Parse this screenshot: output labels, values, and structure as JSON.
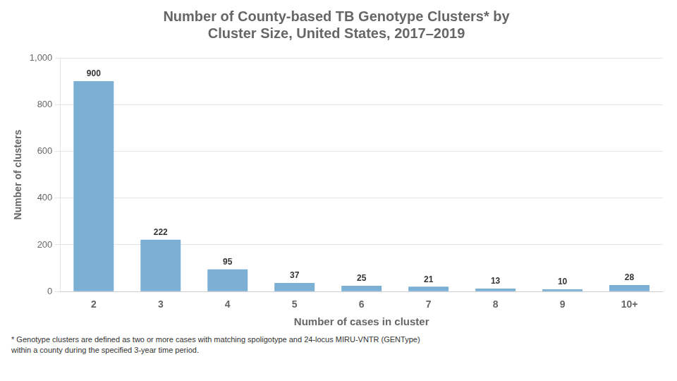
{
  "chart_data": {
    "type": "bar",
    "title": [
      "Number of County-based TB Genotype Clusters* by",
      "Cluster Size, United States, 2017–2019"
    ],
    "xlabel": "Number of cases in cluster",
    "ylabel": "Number of clusters",
    "categories": [
      "2",
      "3",
      "4",
      "5",
      "6",
      "7",
      "8",
      "9",
      "10+"
    ],
    "values": [
      900,
      222,
      95,
      37,
      25,
      21,
      13,
      10,
      28
    ],
    "color": "#7bafd4",
    "ylim": [
      0,
      1000
    ],
    "yticks": [
      0,
      200,
      400,
      600,
      800,
      {
        "value": 1000,
        "label": "1,000"
      }
    ],
    "grid": true,
    "data_labels": true,
    "annotations": [
      "* Genotype clusters are defined as two or more cases with matching spoligotype and 24-locus MIRU-VNTR (GENType)",
      "within a county during the specified 3-year time period."
    ]
  }
}
